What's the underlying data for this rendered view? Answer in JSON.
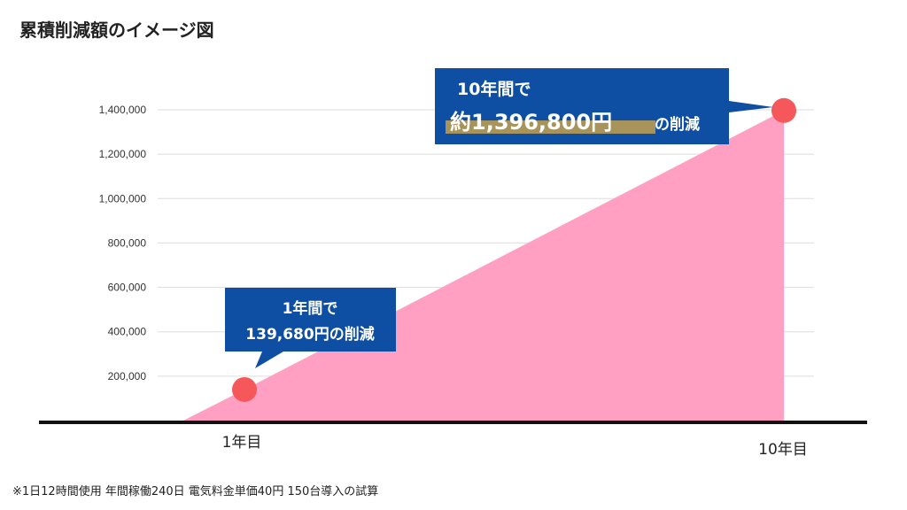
{
  "title": "累積削減額のイメージ図",
  "footnote": "※1日12時間使用 年間稼働240日 電気料金単価40円 150台導入の試算",
  "colors": {
    "area": "#ff9fc2",
    "marker": "#f5575a",
    "callout": "#0f4fa3",
    "highlight": "#a8945a",
    "grid": "#dddddd",
    "baseline": "#111111"
  },
  "callouts": {
    "year1": {
      "line1": "1年間で",
      "line2": "139,680円の削減"
    },
    "year10": {
      "line1": "10年間で",
      "amount": "約1,396,800円",
      "suffix": "の削減"
    }
  },
  "chart_data": {
    "type": "area",
    "title": "累積削減額のイメージ図",
    "x_labels": [
      "1年目",
      "10年目"
    ],
    "points": [
      {
        "label": "1年目",
        "year": 1,
        "value": 139680
      },
      {
        "label": "10年目",
        "year": 10,
        "value": 1396800
      }
    ],
    "y_ticks": [
      "200,000",
      "400,000",
      "600,000",
      "800,000",
      "1,000,000",
      "1,200,000",
      "1,400,000"
    ],
    "y_tick_values": [
      200000,
      400000,
      600000,
      800000,
      1000000,
      1200000,
      1400000
    ],
    "ylim": [
      0,
      1400000
    ],
    "grid": true
  }
}
